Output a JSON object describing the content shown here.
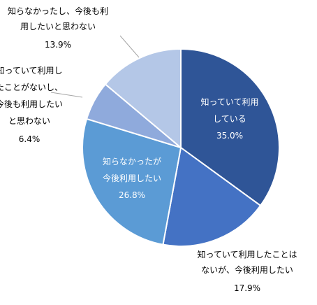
{
  "chart_data": {
    "type": "pie",
    "title": "",
    "slices": [
      {
        "label_lines": [
          "知っていて利用",
          "している"
        ],
        "value": 35.0,
        "value_text": "35.0%",
        "color": "#2f5597",
        "label_color": "#ffffff"
      },
      {
        "label_lines": [
          "知っていて利用したことは",
          "ないが、今後利用したい"
        ],
        "value": 17.9,
        "value_text": "17.9%",
        "color": "#4472c4",
        "label_color": "#000000"
      },
      {
        "label_lines": [
          "知らなかったが",
          "今後利用したい"
        ],
        "value": 26.8,
        "value_text": "26.8%",
        "color": "#5b9bd5",
        "label_color": "#ffffff"
      },
      {
        "label_lines": [
          "知っていて利用し",
          "たことがないし、",
          "今後も利用したい",
          "と思わない"
        ],
        "value": 6.4,
        "value_text": "6.4%",
        "color": "#8faadc",
        "label_color": "#000000"
      },
      {
        "label_lines": [
          "知らなかったし、今後も利",
          "用したいと思わない"
        ],
        "value": 13.9,
        "value_text": "13.9%",
        "color": "#b4c7e7",
        "label_color": "#000000"
      }
    ],
    "start_angle_deg": 0,
    "direction": "clockwise",
    "legend": "none"
  }
}
